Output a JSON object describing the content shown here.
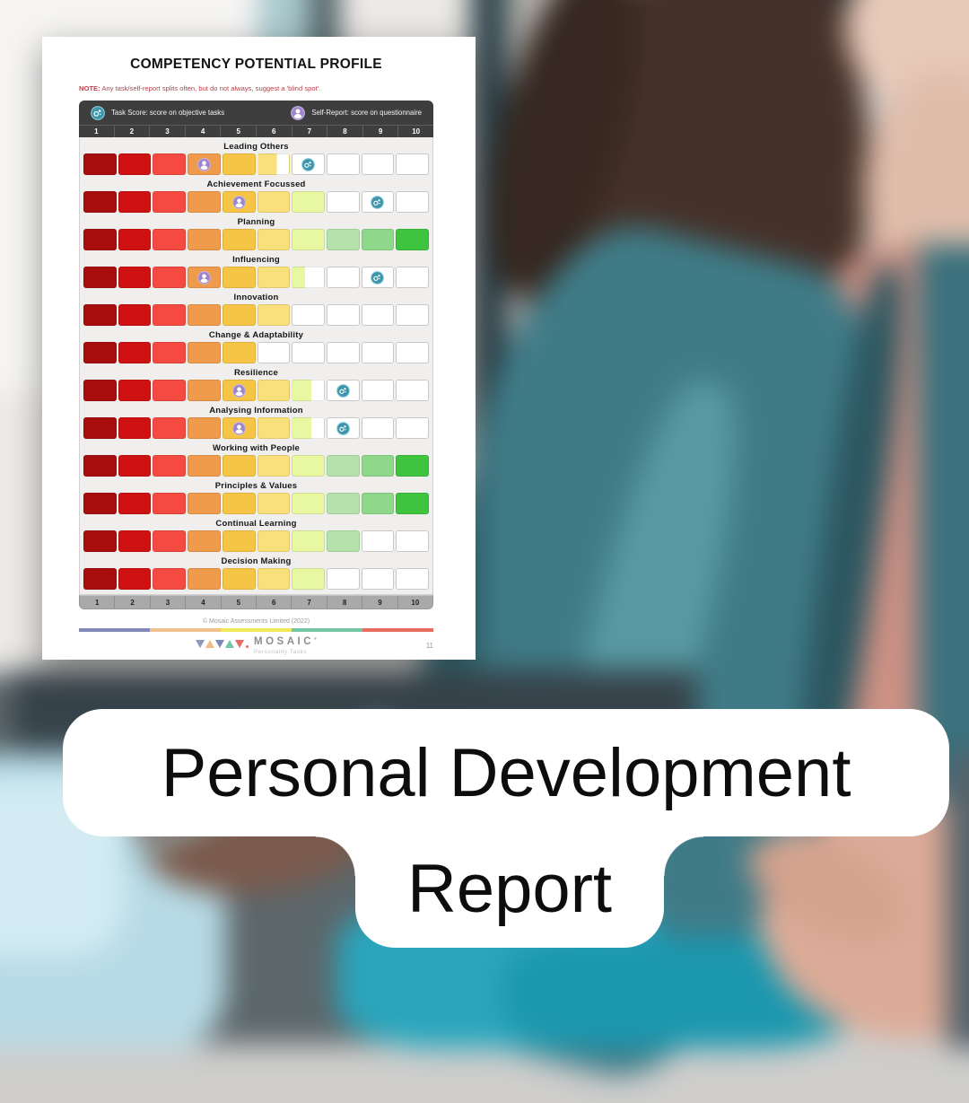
{
  "page": {
    "title": "COMPETENCY POTENTIAL PROFILE",
    "note_label": "NOTE:",
    "note_text": " Any task/self-report splits often, but do not always, suggest a 'blind spot'.",
    "legend": {
      "task": {
        "icon": "task-score-icon",
        "label": "Task Score: score on objective tasks",
        "color": "#3d95ab"
      },
      "self": {
        "icon": "self-report-icon",
        "label": "Self-Report: score on questionnaire",
        "color": "#9d85cb"
      }
    },
    "footer": {
      "copyright": "© Mosaic Assessments Limited (2022)",
      "bar_colors": [
        "#8289b9",
        "#f2c08c",
        "#efe95a",
        "#72c6a3",
        "#e96a5e"
      ],
      "brand": "MOSAIC",
      "brand_mark": "®",
      "brand_sub": "Personality Tasks",
      "logo_triangles": [
        {
          "dir": "down",
          "color": "#8f98bd"
        },
        {
          "dir": "up",
          "color": "#f2bb86"
        },
        {
          "dir": "down",
          "color": "#7d88bb"
        },
        {
          "dir": "up",
          "color": "#74c6a4"
        },
        {
          "dir": "down",
          "color": "#e96a5e"
        }
      ],
      "logo_dot_color": "#e96a5e",
      "page_number": "11"
    }
  },
  "banner": {
    "line1": "Personal Development",
    "line2": "Report"
  },
  "chart_data": {
    "type": "bar",
    "title": "COMPETENCY POTENTIAL PROFILE",
    "x_scale": [
      "1",
      "2",
      "3",
      "4",
      "5",
      "6",
      "7",
      "8",
      "9",
      "10"
    ],
    "xlim": [
      0,
      10
    ],
    "cell_colors": [
      "#a80d0d",
      "#cf1111",
      "#f44a41",
      "#f09a4b",
      "#f6c545",
      "#f9e07c",
      "#e7f7a2",
      "#b5e2ac",
      "#8fd88b",
      "#3fc43f"
    ],
    "legend": [
      {
        "name": "Task Score",
        "description": "score on objective tasks",
        "color": "#3d95ab"
      },
      {
        "name": "Self-Report",
        "description": "score on questionnaire",
        "color": "#9d85cb"
      }
    ],
    "rows": [
      {
        "label": "Leading Others",
        "score": 5.6,
        "self_report": 4,
        "task_score": 7
      },
      {
        "label": "Achievement Focussed",
        "score": 7,
        "self_report": 5,
        "task_score": 9
      },
      {
        "label": "Planning",
        "score": 10,
        "self_report": null,
        "task_score": null
      },
      {
        "label": "Influencing",
        "score": 6.4,
        "self_report": 4,
        "task_score": 9
      },
      {
        "label": "Innovation",
        "score": 6,
        "self_report": null,
        "task_score": null
      },
      {
        "label": "Change & Adaptability",
        "score": 5,
        "self_report": null,
        "task_score": null
      },
      {
        "label": "Resilience",
        "score": 6.6,
        "self_report": 5,
        "task_score": 8
      },
      {
        "label": "Analysing Information",
        "score": 6.6,
        "self_report": 5,
        "task_score": 8
      },
      {
        "label": "Working with People",
        "score": 10,
        "self_report": null,
        "task_score": null
      },
      {
        "label": "Principles & Values",
        "score": 10,
        "self_report": null,
        "task_score": null
      },
      {
        "label": "Continual Learning",
        "score": 8,
        "self_report": null,
        "task_score": null
      },
      {
        "label": "Decision Making",
        "score": 7,
        "self_report": null,
        "task_score": null
      }
    ]
  }
}
